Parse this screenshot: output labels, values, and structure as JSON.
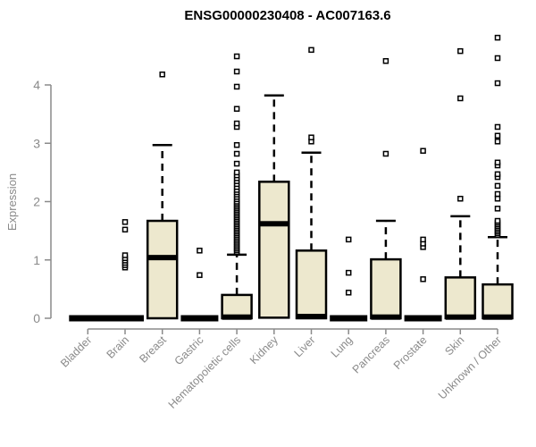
{
  "title": "ENSG00000230408 - AC007163.6",
  "chart_data": {
    "type": "boxplot",
    "title": "ENSG00000230408 - AC007163.6",
    "xlabel": "",
    "ylabel": "Expression",
    "yticks": [
      0,
      1,
      2,
      3,
      4
    ],
    "ylim": [
      0,
      4.85
    ],
    "grid": false,
    "legend": "none",
    "colors": {
      "box_fill": "#EDE8CE",
      "box_stroke": "#000000",
      "median": "#000000",
      "axis": "#8a8a8a",
      "tick_label": "#8a8a8a",
      "title": "#000000"
    },
    "categories": [
      "Bladder",
      "Brain",
      "Breast",
      "Gastric",
      "Hematopoietic cells",
      "Kidney",
      "Liver",
      "Lung",
      "Pancreas",
      "Prostate",
      "Skin",
      "Unknown / Other"
    ],
    "boxes": [
      {
        "label": "Bladder",
        "q1": 0,
        "median": 0,
        "q3": 0,
        "whisker_low": 0,
        "whisker_high": 0,
        "outliers": []
      },
      {
        "label": "Brain",
        "q1": 0,
        "median": 0,
        "q3": 0,
        "whisker_low": 0,
        "whisker_high": 0,
        "outliers": [
          0.87,
          0.91,
          0.95,
          0.99,
          1.03,
          1.08,
          1.52,
          1.65
        ]
      },
      {
        "label": "Breast",
        "q1": 0,
        "median": 1.04,
        "q3": 1.67,
        "whisker_low": 0,
        "whisker_high": 2.97,
        "outliers": [
          4.18
        ]
      },
      {
        "label": "Gastric",
        "q1": 0,
        "median": 0,
        "q3": 0,
        "whisker_low": 0,
        "whisker_high": 0,
        "outliers": [
          0.74,
          1.16
        ]
      },
      {
        "label": "Hematopoietic cells",
        "q1": 0,
        "median": 0.02,
        "q3": 0.4,
        "whisker_low": 0,
        "whisker_high": 1.09,
        "outliers": [
          1.13,
          1.16,
          1.19,
          1.22,
          1.25,
          1.28,
          1.31,
          1.34,
          1.37,
          1.4,
          1.43,
          1.46,
          1.49,
          1.52,
          1.55,
          1.58,
          1.61,
          1.64,
          1.67,
          1.7,
          1.73,
          1.76,
          1.79,
          1.82,
          1.85,
          1.88,
          1.91,
          1.94,
          1.97,
          2.0,
          2.04,
          2.08,
          2.12,
          2.16,
          2.2,
          2.25,
          2.3,
          2.35,
          2.4,
          2.45,
          2.5,
          2.65,
          2.82,
          2.97,
          3.28,
          3.34,
          3.59,
          3.97,
          4.23,
          4.49
        ]
      },
      {
        "label": "Kidney",
        "q1": 0.01,
        "median": 1.62,
        "q3": 2.34,
        "whisker_low": 0,
        "whisker_high": 3.82,
        "outliers": []
      },
      {
        "label": "Liver",
        "q1": 0,
        "median": 0.03,
        "q3": 1.16,
        "whisker_low": 0,
        "whisker_high": 2.84,
        "outliers": [
          3.03,
          3.1,
          4.6
        ]
      },
      {
        "label": "Lung",
        "q1": 0,
        "median": 0,
        "q3": 0,
        "whisker_low": 0,
        "whisker_high": 0,
        "outliers": [
          0.44,
          0.78,
          1.35
        ]
      },
      {
        "label": "Pancreas",
        "q1": 0,
        "median": 0.02,
        "q3": 1.01,
        "whisker_low": 0,
        "whisker_high": 1.67,
        "outliers": [
          2.82,
          4.41
        ]
      },
      {
        "label": "Prostate",
        "q1": 0,
        "median": 0,
        "q3": 0,
        "whisker_low": 0,
        "whisker_high": 0,
        "outliers": [
          0.67,
          1.22,
          1.28,
          1.35,
          2.87
        ]
      },
      {
        "label": "Skin",
        "q1": 0,
        "median": 0.02,
        "q3": 0.7,
        "whisker_low": 0,
        "whisker_high": 1.75,
        "outliers": [
          2.05,
          3.77,
          4.58
        ]
      },
      {
        "label": "Unknown / Other",
        "q1": 0,
        "median": 0.02,
        "q3": 0.58,
        "whisker_low": 0,
        "whisker_high": 1.39,
        "outliers": [
          1.43,
          1.46,
          1.49,
          1.52,
          1.55,
          1.58,
          1.61,
          1.64,
          1.67,
          1.88,
          2.05,
          2.13,
          2.27,
          2.42,
          2.47,
          2.62,
          2.67,
          3.03,
          3.13,
          3.28,
          4.03,
          4.46,
          4.81
        ]
      }
    ]
  }
}
